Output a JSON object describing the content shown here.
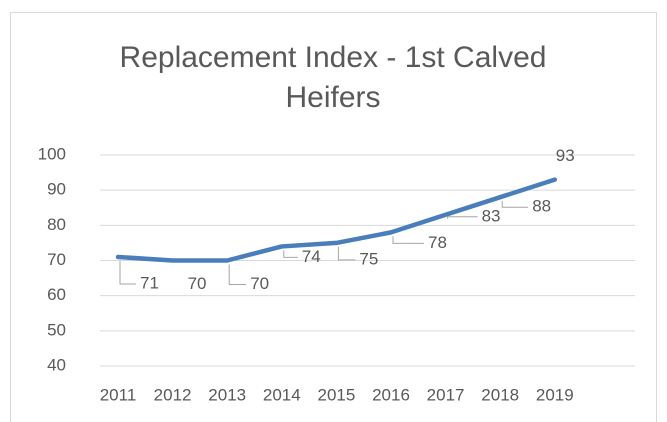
{
  "chart_data": {
    "type": "line",
    "title": "Replacement Index - 1st Calved Heifers",
    "categories": [
      "2011",
      "2012",
      "2013",
      "2014",
      "2015",
      "2016",
      "2017",
      "2018",
      "2019"
    ],
    "series": [
      {
        "name": "Replacement Index",
        "color": "#4a7ebb",
        "values": [
          71,
          70,
          70,
          74,
          75,
          78,
          83,
          88,
          93
        ]
      }
    ],
    "ylim": [
      40,
      100
    ],
    "yticks": [
      40,
      50,
      60,
      70,
      80,
      90,
      100
    ],
    "grid": true
  }
}
